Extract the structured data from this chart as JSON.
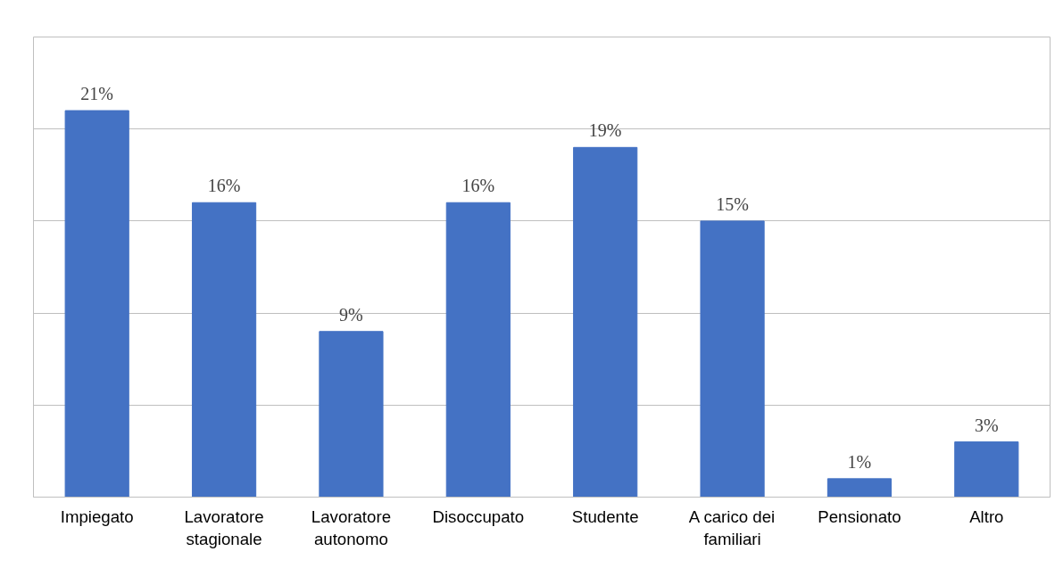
{
  "chart_data": {
    "type": "bar",
    "categories": [
      "Impiegato",
      "Lavoratore stagionale",
      "Lavoratore autonomo",
      "Disoccupato",
      "Studente",
      "A carico dei familiari",
      "Pensionato",
      "Altro"
    ],
    "values": [
      21,
      16,
      9,
      16,
      19,
      15,
      1,
      3
    ],
    "value_labels": [
      "21%",
      "16%",
      "9%",
      "16%",
      "19%",
      "15%",
      "1%",
      "3%"
    ],
    "color": "#4472c4",
    "ylim": [
      0,
      25
    ],
    "yticks": [
      {
        "value": 0,
        "label": null
      },
      {
        "value": 5,
        "label": null
      },
      {
        "value": 10,
        "label": null
      },
      {
        "value": 15,
        "label": null
      },
      {
        "value": 20,
        "label": null
      },
      {
        "value": 25,
        "label": null
      }
    ],
    "tick_labels": "x",
    "grid": "y"
  }
}
